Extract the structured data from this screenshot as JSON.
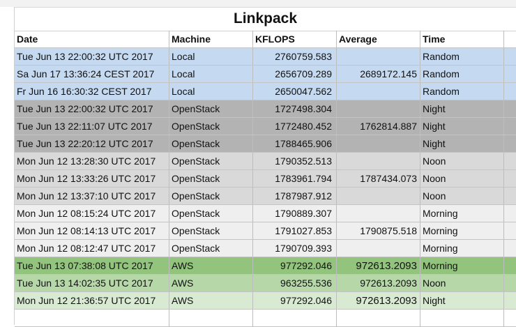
{
  "title": "Linkpack",
  "columns": [
    "Date",
    "Machine",
    "KFLOPS",
    "Average",
    "Time"
  ],
  "rows": [
    {
      "date": "Tue Jun 13 22:00:32 UTC 2017",
      "machine": "Local",
      "kflops": "2760759.583",
      "average": "",
      "time": "Random",
      "color": "#c5d9f1"
    },
    {
      "date": "Sa Jun 17 13:36:24 CEST 2017",
      "machine": "Local",
      "kflops": "2656709.289",
      "average": "2689172.145",
      "time": "Random",
      "color": "#c5d9f1"
    },
    {
      "date": "Fr  Jun 16 16:30:32 CEST 2017",
      "machine": "Local",
      "kflops": "2650047.562",
      "average": "",
      "time": "Random",
      "color": "#c5d9f1"
    },
    {
      "date": "Tue Jun 13 22:00:32 UTC 2017",
      "machine": "OpenStack",
      "kflops": "1727498.304",
      "average": "",
      "time": "Night",
      "color": "#b3b3b3"
    },
    {
      "date": "Tue Jun 13 22:11:07 UTC 2017",
      "machine": "OpenStack",
      "kflops": "1772480.452",
      "average": "1762814.887",
      "time": "Night",
      "color": "#b3b3b3"
    },
    {
      "date": "Tue Jun 13 22:20:12 UTC 2017",
      "machine": "OpenStack",
      "kflops": "1788465.906",
      "average": "",
      "time": "Night",
      "color": "#b3b3b3"
    },
    {
      "date": "Mon Jun 12 13:28:30 UTC 2017",
      "machine": "OpenStack",
      "kflops": "1790352.513",
      "average": "",
      "time": "Noon",
      "color": "#d9d9d9"
    },
    {
      "date": "Mon Jun 12 13:33:26 UTC 2017",
      "machine": "OpenStack",
      "kflops": "1783961.794",
      "average": "1787434.073",
      "time": "Noon",
      "color": "#d9d9d9"
    },
    {
      "date": "Mon Jun 12 13:37:10 UTC 2017",
      "machine": "OpenStack",
      "kflops": "1787987.912",
      "average": "",
      "time": "Noon",
      "color": "#d9d9d9"
    },
    {
      "date": "Mon Jun 12 08:15:24 UTC 2017",
      "machine": "OpenStack",
      "kflops": "1790889.307",
      "average": "",
      "time": "Morning",
      "color": "#efefef"
    },
    {
      "date": "Mon Jun 12 08:14:13 UTC 2017",
      "machine": "OpenStack",
      "kflops": "1791027.853",
      "average": "1790875.518",
      "time": "Morning",
      "color": "#efefef"
    },
    {
      "date": "Mon Jun 12 08:12:47 UTC 2017",
      "machine": "OpenStack",
      "kflops": "1790709.393",
      "average": "",
      "time": "Morning",
      "color": "#efefef"
    },
    {
      "date": "Tue Jun 13 07:38:08 UTC 2017",
      "machine": "AWS",
      "kflops": "977292.046",
      "average": "972613.2093",
      "time": "Morning",
      "color": "#93c47d",
      "avg_big": true
    },
    {
      "date": "Tue Jun 13 14:02:35 UTC 2017",
      "machine": "AWS",
      "kflops": "963255.536",
      "average": "972613.2093",
      "time": "Noon",
      "color": "#b6d7a8",
      "avg_big": false
    },
    {
      "date": "Mon Jun 12 21:36:57 UTC 2017",
      "machine": "AWS",
      "kflops": "977292.046",
      "average": "972613.2093",
      "time": "Night",
      "color": "#d9ead3",
      "avg_big": true
    }
  ]
}
